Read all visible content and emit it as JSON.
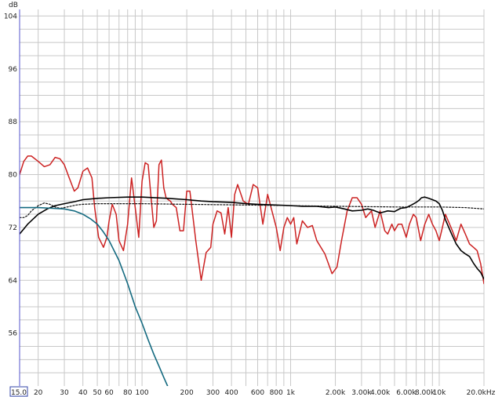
{
  "chart_data": {
    "type": "line",
    "title": "",
    "xlabel": "Hz",
    "ylabel": "dB",
    "x_scale": "log",
    "xlim": [
      15,
      20000
    ],
    "ylim": [
      48,
      105
    ],
    "grid": true,
    "legend": "none",
    "x_start_label": "15.0",
    "y_ticks": [
      "104",
      "96",
      "88",
      "80",
      "72",
      "64",
      "56"
    ],
    "x_ticks": [
      {
        "value": 20,
        "label": "20"
      },
      {
        "value": 30,
        "label": "30"
      },
      {
        "value": 40,
        "label": "40"
      },
      {
        "value": 50,
        "label": "50"
      },
      {
        "value": 60,
        "label": "60"
      },
      {
        "value": 80,
        "label": "80"
      },
      {
        "value": 100,
        "label": "100"
      },
      {
        "value": 200,
        "label": "200"
      },
      {
        "value": 300,
        "label": "300"
      },
      {
        "value": 400,
        "label": "400"
      },
      {
        "value": 600,
        "label": "600"
      },
      {
        "value": 800,
        "label": "800"
      },
      {
        "value": 1000,
        "label": "1k"
      },
      {
        "value": 2000,
        "label": "2.00k"
      },
      {
        "value": 3000,
        "label": "3.00k"
      },
      {
        "value": 4000,
        "label": "4.00k"
      },
      {
        "value": 6000,
        "label": "6.00k"
      },
      {
        "value": 8000,
        "label": "8.00k"
      },
      {
        "value": 10000,
        "label": "10k"
      },
      {
        "value": 20000,
        "label": "20.0kHz"
      }
    ],
    "colors": {
      "red": "#cc2222",
      "black": "#000000",
      "dotted": "#111111",
      "teal": "#146a80",
      "grid": "#c8c8c8",
      "left_axis": "#5555cc"
    },
    "series": [
      {
        "color": "red",
        "x": [
          15,
          16,
          17,
          18,
          20,
          22,
          24,
          26,
          28,
          30,
          32,
          35,
          37,
          40,
          43,
          46,
          48,
          51,
          55,
          58,
          60,
          63,
          67,
          70,
          75,
          80,
          85,
          90,
          95,
          100,
          105,
          110,
          115,
          120,
          125,
          130,
          135,
          140,
          145,
          150,
          155,
          160,
          170,
          180,
          190,
          200,
          210,
          230,
          250,
          270,
          290,
          300,
          320,
          340,
          360,
          380,
          400,
          420,
          440,
          480,
          520,
          560,
          600,
          650,
          700,
          800,
          850,
          900,
          950,
          1000,
          1050,
          1100,
          1200,
          1300,
          1400,
          1500,
          1700,
          1900,
          2050,
          2200,
          2400,
          2600,
          2800,
          3000,
          3200,
          3500,
          3700,
          4000,
          4300,
          4500,
          4800,
          5000,
          5300,
          5600,
          6000,
          6300,
          6700,
          7000,
          7500,
          8000,
          8500,
          9000,
          9500,
          10000,
          10500,
          11000,
          12000,
          13000,
          14000,
          15000,
          16000,
          17000,
          18000,
          19000,
          20000
        ],
        "y": [
          80,
          82,
          82.8,
          82.8,
          82,
          81.2,
          81.5,
          82.6,
          82.4,
          81.5,
          79.8,
          77.5,
          78,
          80.5,
          81,
          79.5,
          75,
          70.5,
          69,
          70.5,
          73,
          75.5,
          74,
          70,
          68.5,
          72.5,
          79.5,
          75,
          70.5,
          79,
          81.8,
          81.5,
          76.5,
          72,
          73,
          81.5,
          82.2,
          78,
          76.5,
          76.2,
          76,
          75.5,
          75,
          71.5,
          71.5,
          77.5,
          77.5,
          70,
          64,
          68.2,
          69,
          72.5,
          74.5,
          74.2,
          71,
          75,
          70.5,
          77,
          78.5,
          76,
          75.5,
          78.5,
          78,
          72.5,
          77,
          72,
          68.5,
          72,
          73.5,
          72.5,
          73.5,
          69.5,
          73,
          72,
          72.3,
          70,
          68,
          65,
          66,
          70,
          74.5,
          76.5,
          76.5,
          75.5,
          73.5,
          74.5,
          72,
          74.5,
          71.5,
          71,
          72.5,
          71.5,
          72.5,
          72.5,
          70.5,
          72.5,
          74,
          73.5,
          70,
          72.5,
          74,
          72.5,
          71.5,
          70,
          72,
          74,
          72,
          70,
          72.5,
          71,
          69.5,
          69,
          68.5,
          66.5,
          63.5
        ]
      },
      {
        "color": "black",
        "x": [
          15,
          17,
          20,
          23,
          26,
          30,
          35,
          40,
          50,
          60,
          80,
          100,
          150,
          200,
          250,
          300,
          400,
          500,
          600,
          800,
          1000,
          1200,
          1500,
          1800,
          2000,
          2300,
          2600,
          3000,
          3300,
          3600,
          4000,
          4500,
          5000,
          5500,
          6000,
          6500,
          7000,
          7300,
          7600,
          8000,
          8500,
          9000,
          9500,
          10000,
          10500,
          11000,
          12000,
          13000,
          14000,
          15000,
          16000,
          17000,
          18000,
          19000,
          20000
        ],
        "y": [
          71,
          72.5,
          74,
          74.8,
          75.3,
          75.6,
          75.9,
          76.2,
          76.4,
          76.5,
          76.6,
          76.6,
          76.4,
          76.2,
          76,
          75.9,
          75.8,
          75.6,
          75.5,
          75.4,
          75.3,
          75.2,
          75.2,
          75,
          75.1,
          74.8,
          74.5,
          74.6,
          74.8,
          74.6,
          74.2,
          74.5,
          74.4,
          74.9,
          75,
          75.4,
          75.8,
          76.1,
          76.5,
          76.6,
          76.4,
          76.2,
          76,
          75.6,
          74.6,
          73.2,
          71.2,
          69.5,
          68.5,
          68,
          67.6,
          66.6,
          65.8,
          65.2,
          64.2
        ]
      },
      {
        "color": "dotted",
        "dashed": true,
        "x": [
          15,
          16,
          17,
          18,
          20,
          22,
          24,
          26,
          28,
          30,
          33,
          36,
          40,
          50,
          60,
          80,
          100,
          200,
          500,
          1000,
          2000,
          5000,
          10000,
          15000,
          20000
        ],
        "y": [
          73.5,
          73.5,
          73.8,
          74.5,
          75.3,
          75.7,
          75.5,
          75.1,
          74.9,
          75,
          75.2,
          75.4,
          75.5,
          75.6,
          75.6,
          75.6,
          75.6,
          75.5,
          75.4,
          75.3,
          75.2,
          75.1,
          75.1,
          75,
          74.8
        ]
      },
      {
        "color": "teal",
        "x": [
          15,
          20,
          25,
          30,
          35,
          40,
          45,
          50,
          55,
          60,
          70,
          80,
          90,
          100,
          110,
          120,
          130,
          140,
          150,
          160,
          170,
          180
        ],
        "y": [
          75,
          75,
          74.9,
          74.8,
          74.5,
          74,
          73.3,
          72.5,
          71.3,
          70,
          67,
          63.5,
          60,
          57.5,
          55,
          52.8,
          51,
          49.3,
          47.8,
          46.5,
          45.3,
          44.3
        ]
      }
    ]
  }
}
